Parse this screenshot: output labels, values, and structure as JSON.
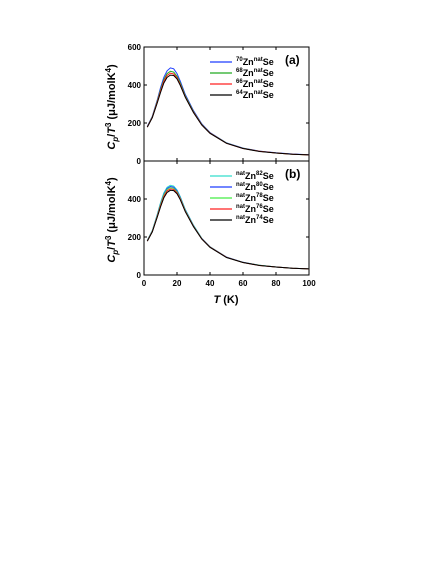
{
  "chart_data": [
    {
      "type": "line",
      "panel_label": "(a)",
      "ylabel": "C_p/T^3 (μJ/molK^4)",
      "ylabel_parts": {
        "c": "C",
        "p": "p",
        "slash": "/",
        "t": "T",
        "exp": "3",
        "unit": " (μJ/molK",
        "unit_exp": "4",
        "close": ")"
      },
      "xlim": [
        0,
        100
      ],
      "ylim": [
        0,
        600
      ],
      "yticks": [
        "0",
        "200",
        "400",
        "600"
      ],
      "x": [
        2,
        5,
        8,
        10,
        12,
        14,
        16,
        18,
        20,
        22,
        25,
        30,
        35,
        40,
        50,
        60,
        70,
        80,
        90,
        100
      ],
      "series": [
        {
          "name": "70Zn natSe",
          "label_pre": "70",
          "label_mid": "Zn",
          "label_sup": "nat",
          "label_post": "Se",
          "color": "#1f3fff",
          "values": [
            182,
            235,
            320,
            385,
            440,
            475,
            490,
            485,
            460,
            420,
            350,
            265,
            195,
            150,
            95,
            68,
            52,
            43,
            37,
            33
          ]
        },
        {
          "name": "68Zn natSe",
          "label_pre": "68",
          "label_mid": "Zn",
          "label_sup": "nat",
          "label_post": "Se",
          "color": "#22aa22",
          "values": [
            180,
            232,
            315,
            375,
            428,
            460,
            472,
            468,
            446,
            410,
            343,
            260,
            192,
            148,
            94,
            67,
            51,
            42,
            36,
            32
          ]
        },
        {
          "name": "66Zn natSe",
          "label_pre": "66",
          "label_mid": "Zn",
          "label_sup": "nat",
          "label_post": "Se",
          "color": "#ff2222",
          "values": [
            179,
            230,
            310,
            368,
            420,
            450,
            462,
            458,
            438,
            403,
            338,
            257,
            190,
            147,
            93,
            66,
            51,
            42,
            36,
            32
          ]
        },
        {
          "name": "64Zn natSe",
          "label_pre": "64",
          "label_mid": "Zn",
          "label_sup": "nat",
          "label_post": "Se",
          "color": "#000000",
          "values": [
            178,
            228,
            305,
            360,
            410,
            440,
            452,
            450,
            432,
            398,
            335,
            255,
            189,
            146,
            93,
            66,
            50,
            42,
            36,
            32
          ]
        }
      ]
    },
    {
      "type": "line",
      "panel_label": "(b)",
      "ylabel": "C_p/T^3 (μJ/molK^4)",
      "ylabel_parts": {
        "c": "C",
        "p": "p",
        "slash": "/",
        "t": "T",
        "exp": "3",
        "unit": " (μJ/molK",
        "unit_exp": "4",
        "close": ")"
      },
      "xlabel": "T (K)",
      "xlabel_parts": {
        "t": "T",
        "unit": " (K)"
      },
      "xlim": [
        0,
        100
      ],
      "ylim": [
        0,
        600
      ],
      "xticks": [
        "0",
        "20",
        "40",
        "60",
        "80",
        "100"
      ],
      "yticks": [
        "0",
        "200",
        "400",
        "600"
      ],
      "x": [
        2,
        5,
        8,
        10,
        12,
        14,
        16,
        18,
        20,
        22,
        25,
        30,
        35,
        40,
        50,
        60,
        70,
        80,
        90,
        100
      ],
      "series": [
        {
          "name": "natZn82Se",
          "label_pre": "nat",
          "label_mid": "Zn",
          "label_sup": "82",
          "label_post": "Se",
          "color": "#33ddcc",
          "values": [
            182,
            234,
            318,
            380,
            432,
            462,
            472,
            468,
            448,
            412,
            345,
            262,
            193,
            149,
            94,
            67,
            51,
            42,
            36,
            32
          ]
        },
        {
          "name": "natZn80Se",
          "label_pre": "nat",
          "label_mid": "Zn",
          "label_sup": "80",
          "label_post": "Se",
          "color": "#1f3fff",
          "values": [
            181,
            232,
            314,
            374,
            426,
            456,
            466,
            462,
            443,
            408,
            342,
            260,
            192,
            148,
            94,
            67,
            51,
            42,
            36,
            32
          ]
        },
        {
          "name": "natZn78Se",
          "label_pre": "nat",
          "label_mid": "Zn",
          "label_sup": "78",
          "label_post": "Se",
          "color": "#44ee44",
          "values": [
            180,
            231,
            311,
            370,
            421,
            450,
            460,
            456,
            438,
            404,
            339,
            258,
            191,
            147,
            93,
            66,
            51,
            42,
            36,
            32
          ]
        },
        {
          "name": "natZn76Se",
          "label_pre": "nat",
          "label_mid": "Zn",
          "label_sup": "76",
          "label_post": "Se",
          "color": "#ff2222",
          "values": [
            179,
            229,
            307,
            364,
            414,
            443,
            453,
            450,
            433,
            400,
            336,
            256,
            190,
            147,
            93,
            66,
            50,
            42,
            36,
            32
          ]
        },
        {
          "name": "natZn74Se",
          "label_pre": "nat",
          "label_mid": "Zn",
          "label_sup": "74",
          "label_post": "Se",
          "color": "#000000",
          "values": [
            178,
            227,
            303,
            358,
            406,
            435,
            446,
            444,
            428,
            396,
            333,
            254,
            189,
            146,
            92,
            66,
            50,
            42,
            36,
            32
          ]
        }
      ]
    }
  ]
}
